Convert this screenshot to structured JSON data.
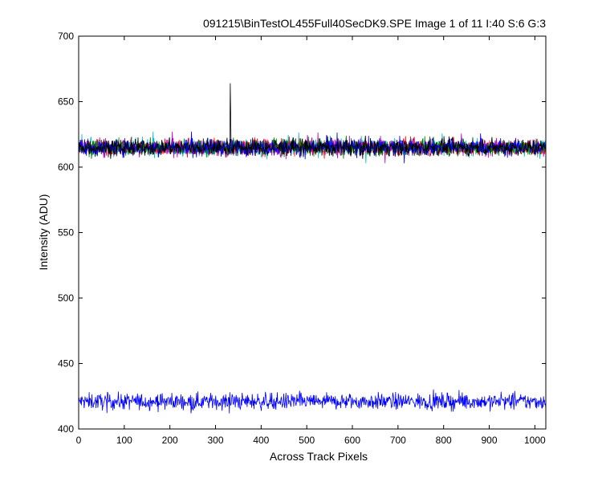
{
  "chart_data": {
    "type": "line",
    "title": "091215\\BinTestOL455Full40SecDK9.SPE  Image 1 of 11  I:40  S:6  G:3",
    "xlabel": "Across Track Pixels",
    "ylabel": "Intensity (ADU)",
    "xlim": [
      0,
      1024
    ],
    "ylim": [
      400,
      700
    ],
    "x_ticks": [
      0,
      100,
      200,
      300,
      400,
      500,
      600,
      700,
      800,
      900,
      1000
    ],
    "y_ticks": [
      400,
      450,
      500,
      550,
      600,
      650,
      700
    ],
    "grid": false,
    "legend": "none",
    "series": [
      {
        "color": "#0000ff",
        "mean": 421,
        "noise": 6,
        "count": 1024
      },
      {
        "color": "#00bfbf",
        "mean": 615,
        "noise": 6,
        "count": 1024
      },
      {
        "color": "#ff0000",
        "mean": 615,
        "noise": 6,
        "count": 1024
      },
      {
        "color": "#bf00bf",
        "mean": 615,
        "noise": 6,
        "count": 1024
      },
      {
        "color": "#008000",
        "mean": 615,
        "noise": 6,
        "count": 1024
      },
      {
        "color": "#0000ff",
        "mean": 615,
        "noise": 6,
        "count": 1024
      },
      {
        "color": "#000000",
        "mean": 615,
        "noise": 6,
        "count": 1024,
        "spike": {
          "x": 332,
          "y": 664
        }
      }
    ]
  }
}
